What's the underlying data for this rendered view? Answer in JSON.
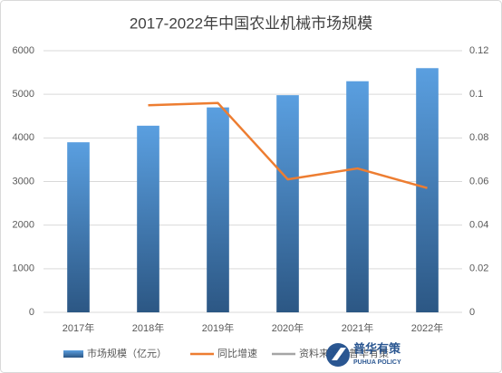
{
  "chart_data": {
    "type": "bar_line",
    "title": "2017-2022年中国农业机械市场规模",
    "categories": [
      "2017年",
      "2018年",
      "2019年",
      "2020年",
      "2021年",
      "2022年"
    ],
    "series": [
      {
        "name": "市场规模（亿元）",
        "color": "#4a86c5",
        "type": "bar",
        "values": [
          3900,
          4280,
          4700,
          4980,
          5300,
          5600
        ]
      },
      {
        "name": "同比增速",
        "color": "#ed7d31",
        "type": "line",
        "axis": "y2",
        "values": [
          null,
          0.095,
          0.096,
          0.061,
          0.066,
          0.057
        ]
      }
    ],
    "legend_note": {
      "name": "资料来源：普华有策",
      "color": "#a5a5a5"
    },
    "watermark": {
      "name": "普华有策",
      "sub": "PUHUA POLICY"
    },
    "ylim": [
      0,
      6000
    ],
    "yticks": [
      0,
      1000,
      2000,
      3000,
      4000,
      5000,
      6000
    ],
    "y2lim": [
      0,
      0.12
    ],
    "y2ticks": [
      0,
      0.02,
      0.04,
      0.06,
      0.08,
      0.1,
      0.12
    ],
    "grid": true,
    "legend": "bottom"
  }
}
